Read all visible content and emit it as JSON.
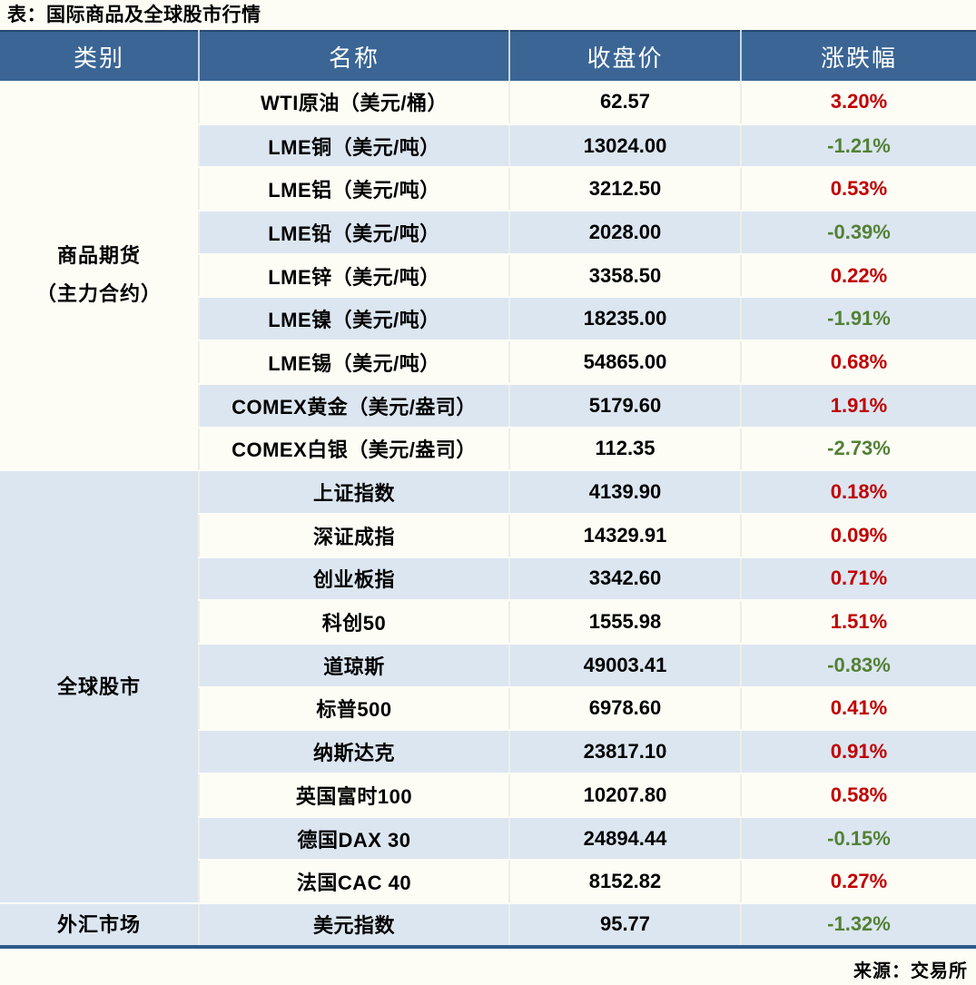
{
  "title": "表：国际商品及全球股市行情",
  "source": "来源：交易所",
  "colors": {
    "header_bg": "#3A6595",
    "stripe_bg": "#DCE6F1",
    "paper_bg": "#FDFDF6",
    "up_red": "#C00000",
    "down_green": "#538135",
    "bottom_border": "#2F5A8B"
  },
  "table": {
    "headers": [
      {
        "label": "类别"
      },
      {
        "label": "名称"
      },
      {
        "label": "收盘价"
      },
      {
        "label": "涨跌幅"
      }
    ],
    "sections": [
      {
        "category": "商品期货\n（主力合约）",
        "rows": [
          {
            "name": "WTI原油（美元/桶）",
            "close": "62.57",
            "change": "3.20%",
            "direction": "up"
          },
          {
            "name": "LME铜（美元/吨）",
            "close": "13024.00",
            "change": "-1.21%",
            "direction": "down"
          },
          {
            "name": "LME铝（美元/吨）",
            "close": "3212.50",
            "change": "0.53%",
            "direction": "up"
          },
          {
            "name": "LME铅（美元/吨）",
            "close": "2028.00",
            "change": "-0.39%",
            "direction": "down"
          },
          {
            "name": "LME锌（美元/吨）",
            "close": "3358.50",
            "change": "0.22%",
            "direction": "up"
          },
          {
            "name": "LME镍（美元/吨）",
            "close": "18235.00",
            "change": "-1.91%",
            "direction": "down"
          },
          {
            "name": "LME锡（美元/吨）",
            "close": "54865.00",
            "change": "0.68%",
            "direction": "up"
          },
          {
            "name": "COMEX黄金（美元/盎司）",
            "close": "5179.60",
            "change": "1.91%",
            "direction": "up"
          },
          {
            "name": "COMEX白银（美元/盎司）",
            "close": "112.35",
            "change": "-2.73%",
            "direction": "down"
          }
        ]
      },
      {
        "category": "全球股市",
        "rows": [
          {
            "name": "上证指数",
            "close": "4139.90",
            "change": "0.18%",
            "direction": "up"
          },
          {
            "name": "深证成指",
            "close": "14329.91",
            "change": "0.09%",
            "direction": "up"
          },
          {
            "name": "创业板指",
            "close": "3342.60",
            "change": "0.71%",
            "direction": "up"
          },
          {
            "name": "科创50",
            "close": "1555.98",
            "change": "1.51%",
            "direction": "up"
          },
          {
            "name": "道琼斯",
            "close": "49003.41",
            "change": "-0.83%",
            "direction": "down"
          },
          {
            "name": "标普500",
            "close": "6978.60",
            "change": "0.41%",
            "direction": "up"
          },
          {
            "name": "纳斯达克",
            "close": "23817.10",
            "change": "0.91%",
            "direction": "up"
          },
          {
            "name": "英国富时100",
            "close": "10207.80",
            "change": "0.58%",
            "direction": "up"
          },
          {
            "name": "德国DAX 30",
            "close": "24894.44",
            "change": "-0.15%",
            "direction": "down"
          },
          {
            "name": "法国CAC 40",
            "close": "8152.82",
            "change": "0.27%",
            "direction": "up"
          }
        ]
      },
      {
        "category": "外汇市场",
        "rows": [
          {
            "name": "美元指数",
            "close": "95.77",
            "change": "-1.32%",
            "direction": "down"
          }
        ]
      }
    ]
  }
}
